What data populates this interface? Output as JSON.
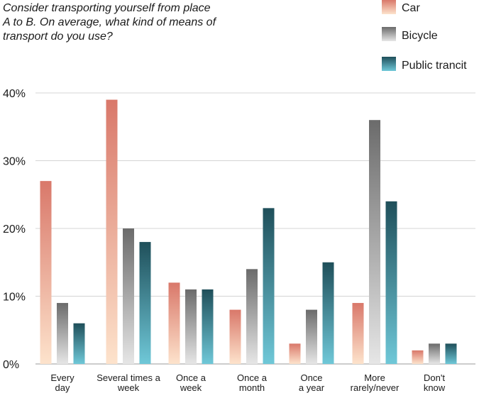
{
  "chart_data": {
    "type": "bar",
    "title": [
      "Consider transporting yourself from place",
      "A to B. On average, what kind of means of",
      "transport do you use?"
    ],
    "categories": [
      [
        "Every",
        "day"
      ],
      [
        "Several times a",
        "week"
      ],
      [
        "Once a",
        "week"
      ],
      [
        "Once a",
        "month"
      ],
      [
        "Once",
        "a year"
      ],
      [
        "More",
        "rarely/never"
      ],
      [
        "Don't",
        "know"
      ]
    ],
    "series": [
      {
        "name": "Car",
        "values": [
          27,
          39,
          12,
          8,
          3,
          9,
          2
        ],
        "color_top": "#d9786a",
        "color_bottom": "#fde3cc"
      },
      {
        "name": "Bicycle",
        "values": [
          9,
          20,
          11,
          14,
          8,
          36,
          3
        ],
        "color_top": "#6b6b6b",
        "color_bottom": "#e6e6e6"
      },
      {
        "name": "Public trancit",
        "values": [
          6,
          18,
          11,
          23,
          15,
          24,
          3
        ],
        "color_top": "#1f4f5a",
        "color_bottom": "#6fc8d8"
      }
    ],
    "yticks": [
      "0%",
      "10%",
      "20%",
      "30%",
      "40%"
    ],
    "ylim": [
      0,
      40
    ],
    "grid": true,
    "legend_position": "top-right"
  }
}
